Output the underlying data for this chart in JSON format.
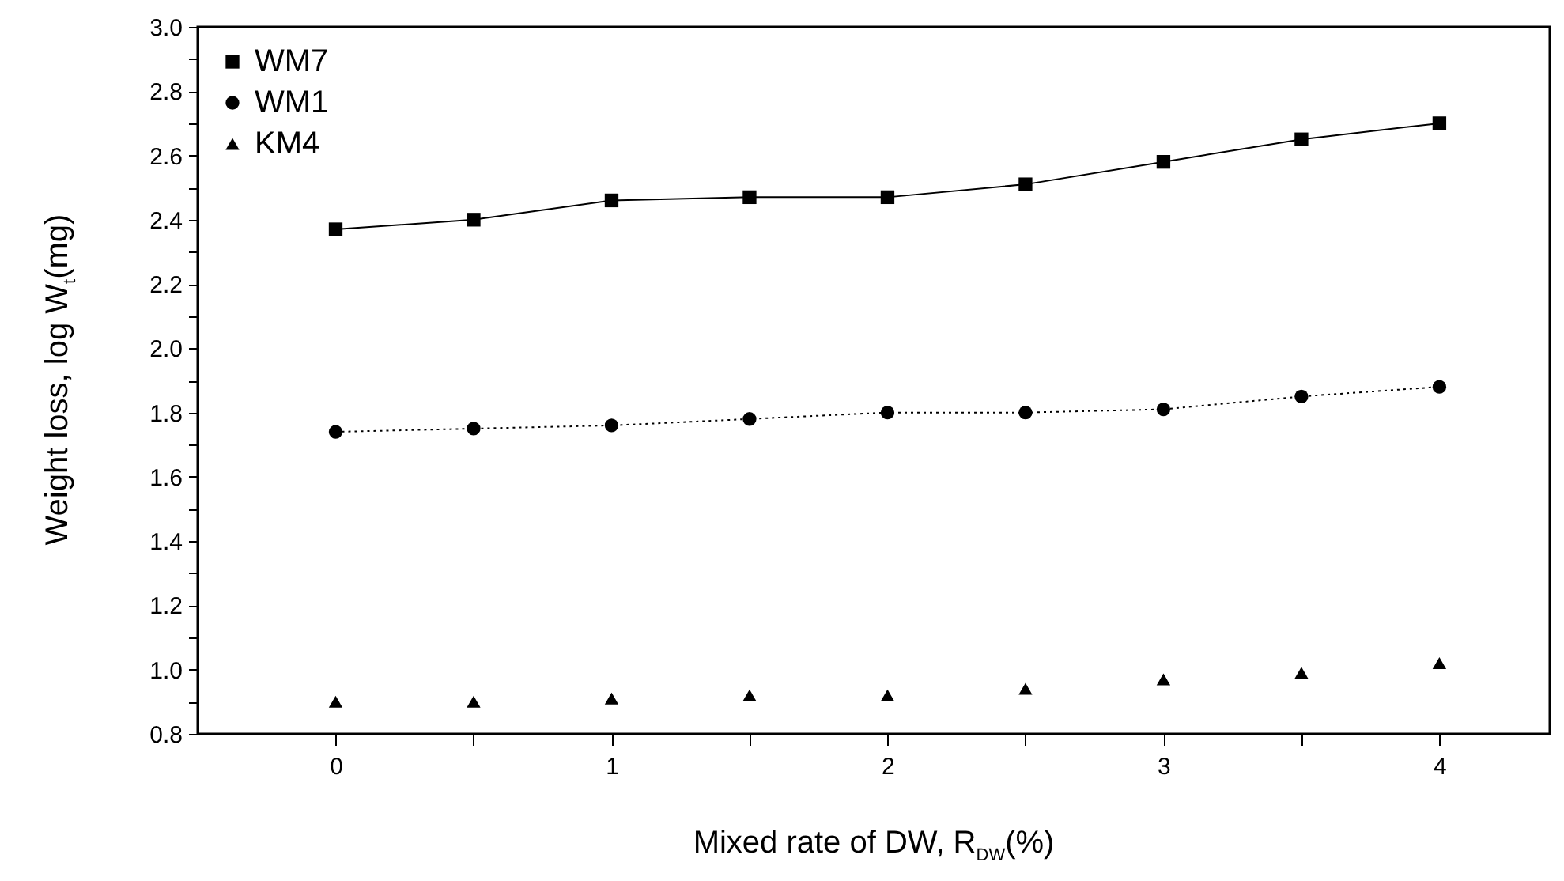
{
  "chart_data": {
    "type": "line",
    "xlabel": "Mixed rate of DW, R$_{DW}$(%)",
    "ylabel": "Weight loss, log W$_{t}$(mg)",
    "x": [
      0,
      0.5,
      1,
      1.5,
      2,
      2.5,
      3,
      3.5,
      4
    ],
    "series": [
      {
        "name": "WM7",
        "color": "#000000",
        "type": "line",
        "marker": "square",
        "line_style": "solid",
        "values": [
          2.37,
          2.4,
          2.46,
          2.47,
          2.47,
          2.51,
          2.58,
          2.65,
          2.7
        ]
      },
      {
        "name": "WM1",
        "color": "#000000",
        "type": "line",
        "marker": "circle",
        "line_style": "dotted",
        "values": [
          1.74,
          1.75,
          1.76,
          1.78,
          1.8,
          1.8,
          1.81,
          1.85,
          1.88
        ]
      },
      {
        "name": "KM4",
        "color": "#000000",
        "type": "scatter",
        "marker": "triangle",
        "values": [
          0.9,
          0.9,
          0.91,
          0.92,
          0.92,
          0.94,
          0.97,
          0.99,
          1.02
        ]
      }
    ],
    "xlim": [
      -0.5,
      4.4
    ],
    "ylim": [
      0.8,
      3.0
    ],
    "xticks": [
      0,
      {
        "value": 0.5,
        "label": null
      },
      1,
      {
        "value": 1.5,
        "label": null
      },
      2,
      {
        "value": 2.5,
        "label": null
      },
      3,
      {
        "value": 3.5,
        "label": null
      },
      4
    ],
    "yticks": [
      {
        "value": 0.8,
        "label": "0.8"
      },
      {
        "value": 0.9,
        "label": null
      },
      {
        "value": 1.0,
        "label": "1.0"
      },
      {
        "value": 1.1,
        "label": null
      },
      {
        "value": 1.2,
        "label": "1.2"
      },
      {
        "value": 1.3,
        "label": null
      },
      {
        "value": 1.4,
        "label": "1.4"
      },
      {
        "value": 1.5,
        "label": null
      },
      {
        "value": 1.6,
        "label": "1.6"
      },
      {
        "value": 1.7,
        "label": null
      },
      {
        "value": 1.8,
        "label": "1.8"
      },
      {
        "value": 1.9,
        "label": null
      },
      {
        "value": 2.0,
        "label": "2.0"
      },
      {
        "value": 2.1,
        "label": null
      },
      {
        "value": 2.2,
        "label": "2.2"
      },
      {
        "value": 2.3,
        "label": null
      },
      {
        "value": 2.4,
        "label": "2.4"
      },
      {
        "value": 2.5,
        "label": null
      },
      {
        "value": 2.6,
        "label": "2.6"
      },
      {
        "value": 2.7,
        "label": null
      },
      {
        "value": 2.8,
        "label": "2.8"
      },
      {
        "value": 2.9,
        "label": null
      },
      {
        "value": 3.0,
        "label": "3.0"
      }
    ],
    "legend": "top left",
    "grid": false
  }
}
